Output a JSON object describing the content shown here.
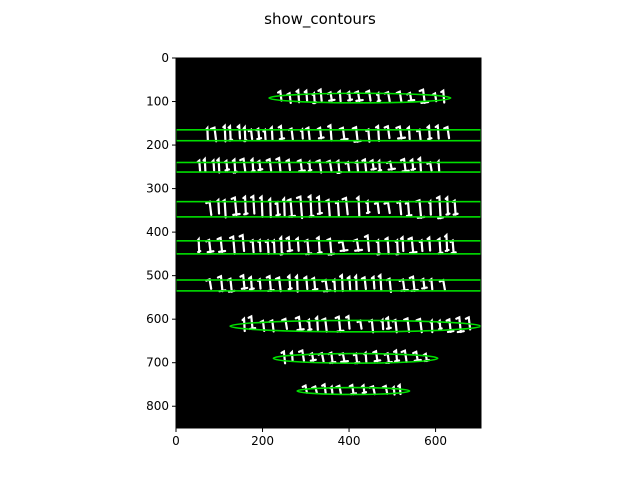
{
  "window": {
    "title": "show_contours"
  },
  "plot": {
    "x_range": [
      0,
      705
    ],
    "y_range": [
      0,
      850
    ],
    "x_ticks": [
      0,
      200,
      400,
      600
    ],
    "y_ticks": [
      0,
      100,
      200,
      300,
      400,
      500,
      600,
      700,
      800
    ],
    "x_tick_labels": [
      "0",
      "200",
      "400",
      "600"
    ],
    "y_tick_labels": [
      "0",
      "100",
      "200",
      "300",
      "400",
      "500",
      "600",
      "700",
      "800"
    ],
    "background_color": "#000000",
    "text_color": "#ffffff",
    "contour_color": "#00e000",
    "lines": [
      {
        "type": "ellipse",
        "cx": 425,
        "cy": 92,
        "rx": 210,
        "ry": 11
      },
      {
        "type": "rect",
        "x1": 0,
        "x2": 705,
        "y1": 165,
        "y2": 190
      },
      {
        "type": "rect",
        "x1": 0,
        "x2": 705,
        "y1": 240,
        "y2": 262
      },
      {
        "type": "rect",
        "x1": 0,
        "x2": 705,
        "y1": 330,
        "y2": 365
      },
      {
        "type": "rect",
        "x1": 0,
        "x2": 705,
        "y1": 420,
        "y2": 450
      },
      {
        "type": "rect",
        "x1": 0,
        "x2": 705,
        "y1": 510,
        "y2": 535
      },
      {
        "type": "ellipse",
        "cx": 415,
        "cy": 616,
        "rx": 290,
        "ry": 13
      },
      {
        "type": "ellipse",
        "cx": 415,
        "cy": 690,
        "rx": 190,
        "ry": 11
      },
      {
        "type": "ellipse",
        "cx": 410,
        "cy": 765,
        "rx": 130,
        "ry": 8
      }
    ]
  }
}
